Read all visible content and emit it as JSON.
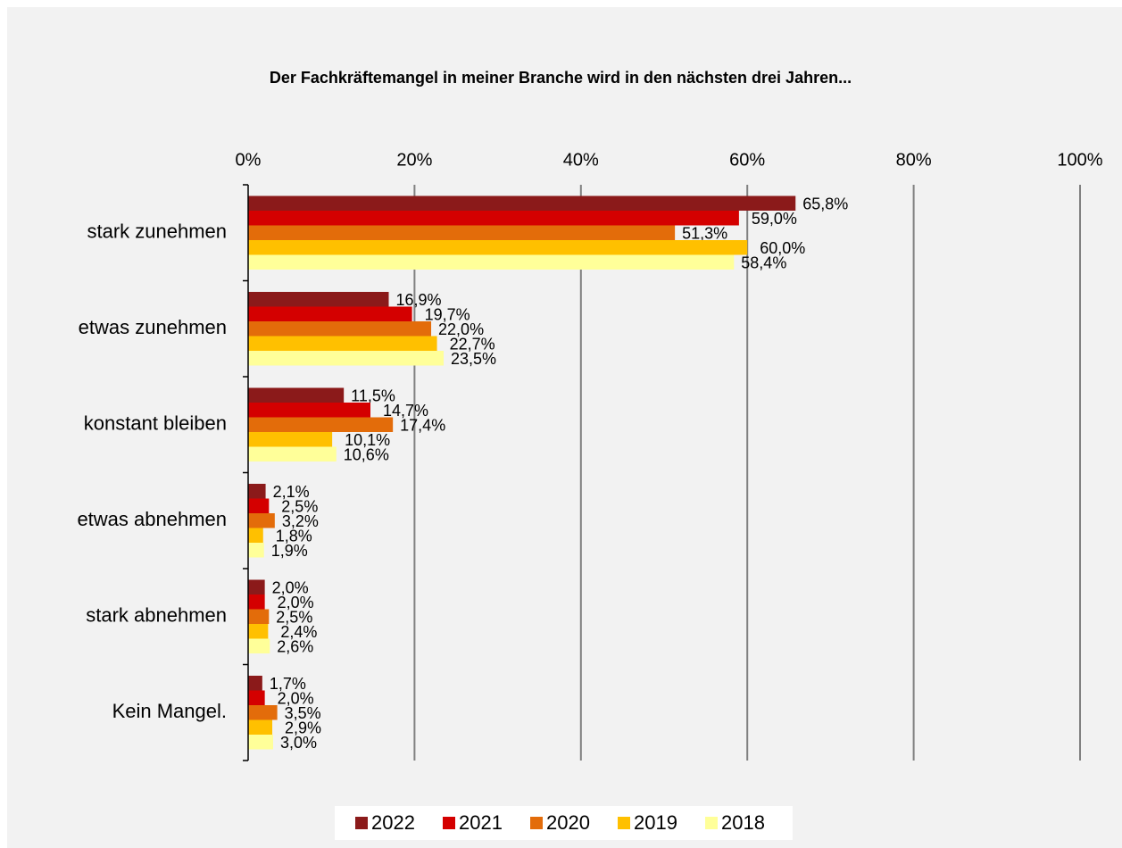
{
  "chart_data": {
    "type": "bar",
    "orientation": "horizontal",
    "title": "Der Fachkräftemangel in meiner Branche wird in den nächsten drei Jahren...",
    "categories": [
      "stark zunehmen",
      "etwas zunehmen",
      "konstant bleiben",
      "etwas abnehmen",
      "stark abnehmen",
      "Kein Mangel."
    ],
    "series": [
      {
        "name": "2022",
        "color": "#8b1a1a",
        "values": [
          65.8,
          16.9,
          11.5,
          2.1,
          2.0,
          1.7
        ],
        "value_labels": [
          "65,8%",
          "16,9%",
          "11,5%",
          "2,1%",
          "2,0%",
          "1,7%"
        ]
      },
      {
        "name": "2021",
        "color": "#d40000",
        "values": [
          59.0,
          19.7,
          14.7,
          2.5,
          2.0,
          2.0
        ],
        "value_labels": [
          "59,0%",
          "19,7%",
          "14,7%",
          "2,5%",
          "2,0%",
          "2,0%"
        ]
      },
      {
        "name": "2020",
        "color": "#e36c0a",
        "values": [
          51.3,
          22.0,
          17.4,
          3.2,
          2.5,
          3.5
        ],
        "value_labels": [
          "51,3%",
          "22,0%",
          "17,4%",
          "3,2%",
          "2,5%",
          "3,5%"
        ]
      },
      {
        "name": "2019",
        "color": "#ffc000",
        "values": [
          60.0,
          22.7,
          10.1,
          1.8,
          2.4,
          2.9
        ],
        "value_labels": [
          "60,0%",
          "22,7%",
          "10,1%",
          "1,8%",
          "2,4%",
          "2,9%"
        ]
      },
      {
        "name": "2018",
        "color": "#ffff99",
        "values": [
          58.4,
          23.5,
          10.6,
          1.9,
          2.6,
          3.0
        ],
        "value_labels": [
          "58,4%",
          "23,5%",
          "10,6%",
          "1,9%",
          "2,6%",
          "3,0%"
        ]
      }
    ],
    "xlim": [
      0,
      100
    ],
    "xticks": [
      {
        "value": 0,
        "label": "0%"
      },
      {
        "value": 20,
        "label": "20%"
      },
      {
        "value": 40,
        "label": "40%"
      },
      {
        "value": 60,
        "label": "60%"
      },
      {
        "value": 80,
        "label": "80%"
      },
      {
        "value": 100,
        "label": "100%"
      }
    ],
    "grid": true,
    "legend": "bottom"
  }
}
